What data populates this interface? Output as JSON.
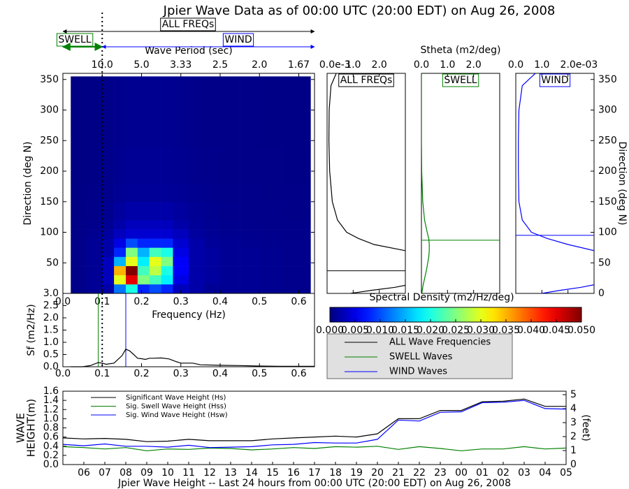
{
  "chart_data": [
    {
      "type": "heatmap",
      "title": "Jpier Wave Data as of 00:00 UTC (20:00 EDT) on Aug 26, 2008",
      "x_label": "Frequency (Hz)",
      "y_label": "Direction (deg N)",
      "x2_label": "Wave Period (sec)",
      "xlim": [
        0,
        0.64
      ],
      "ylim": [
        0,
        360
      ],
      "xticks": [
        {
          "value": 0,
          "label": "0.0"
        },
        0.1,
        0.2,
        0.3,
        0.4,
        0.5,
        0.6
      ],
      "yticks": [
        50,
        100,
        150,
        200,
        250,
        300,
        350
      ],
      "x2ticks": [
        {
          "value": 0.1,
          "label": "10.0"
        },
        {
          "value": 0.2,
          "label": "5.0"
        },
        {
          "value": 0.3,
          "label": "3.33"
        },
        {
          "value": 0.4,
          "label": "2.5"
        },
        {
          "value": 0.5,
          "label": "2.0"
        },
        {
          "value": 0.6,
          "label": "1.67"
        }
      ],
      "divider": 0.1,
      "all_label": "ALL FREQs",
      "swell_label": "SWELL",
      "wind_label": "WIND",
      "swell_color": "#008000",
      "wind_color": "#0000ff",
      "colormap": "jet",
      "x_edges": [
        0.02,
        0.06,
        0.1,
        0.13,
        0.16,
        0.19,
        0.22,
        0.25,
        0.28,
        0.32,
        0.36,
        0.4,
        0.45,
        0.5,
        0.56,
        0.63
      ],
      "y_edges": [
        0,
        15,
        30,
        45,
        60,
        75,
        90,
        105,
        120,
        150,
        180,
        240,
        300,
        355
      ],
      "z": [
        [
          0.0005,
          0.001,
          0.002,
          0.012,
          0.02,
          0.008,
          0.01,
          0.008,
          0.003,
          0.002,
          0.001,
          0.001,
          0.001,
          0.0008,
          0.0006
        ],
        [
          0.0005,
          0.001,
          0.003,
          0.03,
          0.045,
          0.025,
          0.022,
          0.018,
          0.005,
          0.002,
          0.0015,
          0.001,
          0.001,
          0.0008,
          0.0006
        ],
        [
          0.0005,
          0.001,
          0.003,
          0.035,
          0.05,
          0.022,
          0.028,
          0.02,
          0.006,
          0.002,
          0.0015,
          0.001,
          0.001,
          0.0008,
          0.0006
        ],
        [
          0.0005,
          0.001,
          0.003,
          0.015,
          0.03,
          0.018,
          0.03,
          0.025,
          0.006,
          0.002,
          0.0015,
          0.001,
          0.001,
          0.0008,
          0.0006
        ],
        [
          0.0005,
          0.001,
          0.002,
          0.008,
          0.025,
          0.015,
          0.022,
          0.02,
          0.005,
          0.002,
          0.0015,
          0.001,
          0.001,
          0.0008,
          0.0006
        ],
        [
          0.0005,
          0.001,
          0.002,
          0.005,
          0.01,
          0.008,
          0.008,
          0.008,
          0.004,
          0.002,
          0.0012,
          0.001,
          0.0008,
          0.0007,
          0.0006
        ],
        [
          0.0004,
          0.0008,
          0.0015,
          0.003,
          0.004,
          0.004,
          0.004,
          0.004,
          0.003,
          0.0015,
          0.001,
          0.0008,
          0.0007,
          0.0006,
          0.0005
        ],
        [
          0.0004,
          0.0006,
          0.001,
          0.002,
          0.003,
          0.003,
          0.003,
          0.003,
          0.002,
          0.0012,
          0.0009,
          0.0007,
          0.0006,
          0.0005,
          0.0005
        ],
        [
          0.0003,
          0.0005,
          0.0008,
          0.0015,
          0.002,
          0.002,
          0.002,
          0.002,
          0.0015,
          0.001,
          0.0008,
          0.0006,
          0.0005,
          0.0005,
          0.0004
        ],
        [
          0.0003,
          0.0004,
          0.0006,
          0.001,
          0.0012,
          0.0012,
          0.0012,
          0.0012,
          0.001,
          0.0008,
          0.0006,
          0.0005,
          0.0005,
          0.0004,
          0.0004
        ],
        [
          0.0002,
          0.0003,
          0.0005,
          0.0008,
          0.001,
          0.001,
          0.001,
          0.001,
          0.0008,
          0.0006,
          0.0005,
          0.0004,
          0.0004,
          0.0004,
          0.0003
        ],
        [
          0.0002,
          0.0003,
          0.0004,
          0.0007,
          0.0008,
          0.0008,
          0.0008,
          0.0008,
          0.0007,
          0.0005,
          0.0004,
          0.0004,
          0.0004,
          0.0003,
          0.0003
        ],
        [
          0.0002,
          0.0003,
          0.0004,
          0.0007,
          0.0008,
          0.0008,
          0.0008,
          0.0008,
          0.0007,
          0.0005,
          0.0004,
          0.0004,
          0.0004,
          0.0003,
          0.0003
        ]
      ]
    },
    {
      "type": "colorbar",
      "title": "Spectral Density (m2/Hz/deg)",
      "colormap": "jet",
      "xlim": [
        0,
        0.05
      ],
      "xticks": [
        {
          "value": 0,
          "label": "0.000"
        },
        0.005,
        {
          "value": 0.01,
          "label": "0.010"
        },
        0.015,
        {
          "value": 0.02,
          "label": "0.020"
        },
        0.025,
        {
          "value": 0.03,
          "label": "0.030"
        },
        0.035,
        {
          "value": 0.04,
          "label": "0.040"
        },
        0.045,
        {
          "value": 0.05,
          "label": "0.050"
        }
      ]
    },
    {
      "type": "spectrum",
      "y_label": "Sf (m2/Hz)",
      "xlim": [
        0,
        0.64
      ],
      "ylim": [
        0,
        3
      ],
      "xticks": [
        {
          "value": 0,
          "label": "0.0"
        },
        0.1,
        0.2,
        0.3,
        0.4,
        0.5,
        0.6
      ],
      "yticks": [
        {
          "value": 0,
          "label": "0.0"
        },
        0.5,
        {
          "value": 1,
          "label": "1.0"
        },
        1.5,
        {
          "value": 2,
          "label": "2.0"
        },
        2.5,
        {
          "value": 3,
          "label": "3.0"
        }
      ],
      "divider": 0.1,
      "x": [
        0.02,
        0.05,
        0.07,
        0.09,
        0.1,
        0.11,
        0.13,
        0.15,
        0.16,
        0.17,
        0.18,
        0.19,
        0.2,
        0.21,
        0.22,
        0.23,
        0.25,
        0.27,
        0.29,
        0.3,
        0.33,
        0.35,
        0.4,
        0.45,
        0.5,
        0.55,
        0.6,
        0.64
      ],
      "series": [
        {
          "name": "ALL Wave Frequencies",
          "color": "#000000",
          "values": [
            0,
            0,
            0.05,
            0.17,
            0.15,
            0.1,
            0.15,
            0.45,
            0.72,
            0.65,
            0.5,
            0.35,
            0.33,
            0.3,
            0.35,
            0.35,
            0.36,
            0.32,
            0.2,
            0.15,
            0.15,
            0.08,
            0.06,
            0.05,
            0.03,
            0.02,
            0.02,
            0.02
          ]
        }
      ],
      "markers": [
        {
          "name": "SWELL Waves",
          "color": "#008000",
          "x": 0.09
        },
        {
          "name": "WIND Waves",
          "color": "#0000ff",
          "x": 0.16
        }
      ]
    },
    {
      "type": "direction",
      "label": "ALL FREQs",
      "color": "#000000",
      "offset_label": "e-3",
      "xlim": [
        0,
        3
      ],
      "ylim": [
        0,
        360
      ],
      "xticks": [
        {
          "value": 0,
          "label": "0.0"
        },
        {
          "value": 1,
          "label": "1.0"
        },
        {
          "value": 2,
          "label": "2.0"
        }
      ],
      "peak": 37,
      "y": [
        0,
        5,
        10,
        15,
        20,
        30,
        40,
        60,
        70,
        80,
        90,
        100,
        120,
        150,
        200,
        250,
        300,
        340,
        360
      ],
      "values": [
        0.9,
        1.7,
        2.6,
        3.2,
        4,
        5,
        5,
        4,
        3.0,
        1.8,
        1.2,
        0.75,
        0.4,
        0.2,
        0.1,
        0.07,
        0.08,
        0.15,
        0.35
      ]
    },
    {
      "type": "direction",
      "label": "SWELL",
      "title": "Stheta (m2/deg)",
      "color": "#008000",
      "xlim": [
        0,
        3
      ],
      "ylim": [
        0,
        360
      ],
      "xticks": [
        {
          "value": 0,
          "label": "0.0"
        },
        {
          "value": 1,
          "label": "1.0"
        },
        {
          "value": 2,
          "label": "2.0"
        }
      ],
      "peak": 87,
      "y": [
        0,
        5,
        10,
        15,
        20,
        30,
        40,
        60,
        70,
        80,
        90,
        100,
        120,
        150,
        200,
        250,
        300,
        340,
        360
      ],
      "values": [
        0.02,
        0.03,
        0.05,
        0.07,
        0.1,
        0.15,
        0.2,
        0.28,
        0.3,
        0.3,
        0.28,
        0.22,
        0.12,
        0.05,
        0.01,
        0,
        0,
        0,
        0
      ]
    },
    {
      "type": "direction",
      "label": "WIND",
      "color": "#0000ff",
      "offset_label": "e-03",
      "xlim": [
        0,
        3
      ],
      "ylim": [
        0,
        360
      ],
      "xticks": [
        {
          "value": 0,
          "label": "0.0"
        },
        {
          "value": 1,
          "label": "1.0"
        },
        {
          "value": 2,
          "label": "2.0"
        }
      ],
      "yticks": [
        0,
        50,
        100,
        150,
        200,
        250,
        300,
        350
      ],
      "y_label": "Direction (deg N)",
      "peak": 95,
      "y": [
        0,
        5,
        10,
        15,
        20,
        30,
        40,
        60,
        70,
        80,
        90,
        100,
        120,
        150,
        200,
        250,
        300,
        340,
        360
      ],
      "values": [
        1.0,
        1.7,
        2.5,
        3.1,
        4,
        5,
        5,
        4.2,
        3.0,
        2.0,
        1.2,
        0.6,
        0.25,
        0.12,
        0.1,
        0.1,
        0.12,
        0.25,
        0.75
      ]
    },
    {
      "type": "line",
      "x_label": "Jpier Wave Height -- Last 24 hours from 00:00 UTC (20:00 EDT) on Aug 26, 2008",
      "y_label": [
        "WAVE",
        "HEIGHT(m)"
      ],
      "y2_label": "(feet)",
      "categories": [
        null,
        "06",
        "07",
        "08",
        "09",
        "10",
        "11",
        "12",
        "13",
        "14",
        "15",
        "16",
        "17",
        "18",
        "19",
        "20",
        "21",
        "22",
        "23",
        "00",
        "01",
        "02",
        "03",
        "04",
        "05"
      ],
      "ylim": [
        0,
        1.6
      ],
      "yticks": [
        {
          "value": 0,
          "label": "0.0"
        },
        0.2,
        0.4,
        0.6,
        0.8,
        {
          "value": 1,
          "label": "1.0"
        },
        1.2,
        1.4,
        1.6
      ],
      "y2lim": [
        0,
        5.249
      ],
      "y2ticks": [
        0,
        1,
        2,
        3,
        4,
        5
      ],
      "series": [
        {
          "name": "Significant Wave Height (Hs)",
          "color": "#000000",
          "values": [
            0.58,
            0.56,
            0.57,
            0.55,
            0.5,
            0.51,
            0.55,
            0.52,
            0.52,
            0.52,
            0.56,
            0.58,
            0.6,
            0.62,
            0.6,
            0.67,
            1.0,
            1.0,
            1.18,
            1.18,
            1.37,
            1.38,
            1.43,
            1.27,
            1.27
          ]
        },
        {
          "name": "Sig. Swell Wave Height (Hss)",
          "color": "#008000",
          "values": [
            0.39,
            0.37,
            0.34,
            0.37,
            0.3,
            0.34,
            0.33,
            0.36,
            0.35,
            0.32,
            0.34,
            0.37,
            0.35,
            0.39,
            0.38,
            0.4,
            0.33,
            0.39,
            0.35,
            0.3,
            0.34,
            0.34,
            0.39,
            0.34,
            0.36
          ]
        },
        {
          "name": "Sig. Wind Wave Height (Hsw)",
          "color": "#0000ff",
          "values": [
            0.44,
            0.41,
            0.45,
            0.4,
            0.4,
            0.38,
            0.42,
            0.37,
            0.38,
            0.39,
            0.43,
            0.44,
            0.48,
            0.47,
            0.47,
            0.55,
            0.97,
            0.95,
            1.14,
            1.15,
            1.35,
            1.36,
            1.4,
            1.22,
            1.21
          ]
        }
      ]
    }
  ]
}
